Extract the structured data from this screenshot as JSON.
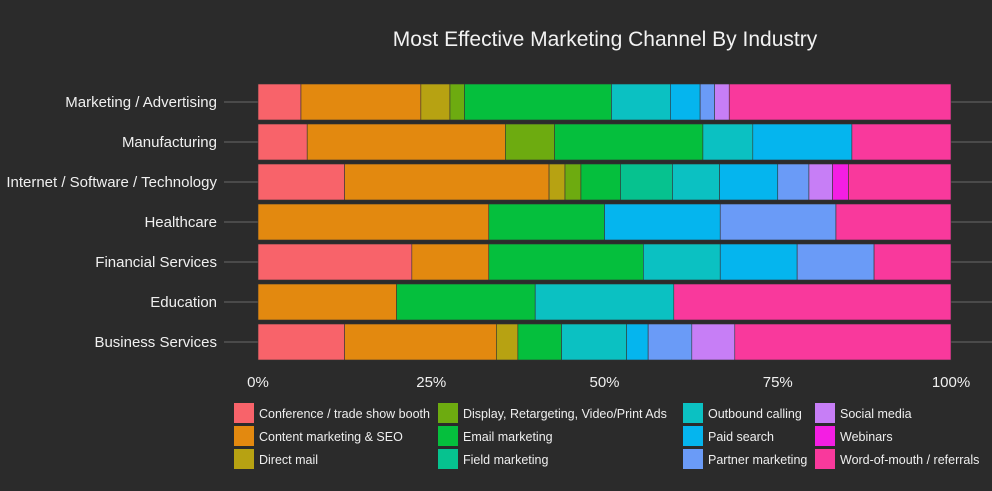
{
  "chart_data": {
    "type": "bar",
    "orientation": "horizontal",
    "stacked": "percent",
    "title": "Most Effective Marketing Channel By Industry",
    "xlabel": "",
    "ylabel": "",
    "xlim": [
      0,
      1
    ],
    "x_ticks": [
      "0%",
      "25%",
      "50%",
      "75%",
      "100%"
    ],
    "grid": true,
    "legend_position": "bottom",
    "categories": [
      "Marketing / Advertising",
      "Manufacturing",
      "Internet / Software / Technology",
      "Healthcare",
      "Financial Services",
      "Education",
      "Business Services"
    ],
    "series": [
      {
        "name": "Conference / trade show booth",
        "color": "#f8636a",
        "values": [
          0.062,
          0.071,
          0.125,
          0.0,
          0.222,
          0.0,
          0.125
        ]
      },
      {
        "name": "Content marketing & SEO",
        "color": "#e3890f",
        "values": [
          0.173,
          0.286,
          0.295,
          0.333,
          0.111,
          0.2,
          0.219
        ]
      },
      {
        "name": "Direct mail",
        "color": "#b7a212",
        "values": [
          0.042,
          0.0,
          0.023,
          0.0,
          0.0,
          0.0,
          0.031
        ]
      },
      {
        "name": "Display, Retargeting, Video/Print Ads",
        "color": "#6dab10",
        "values": [
          0.021,
          0.071,
          0.023,
          0.0,
          0.0,
          0.0,
          0.0
        ]
      },
      {
        "name": "Email marketing",
        "color": "#05bf3d",
        "values": [
          0.212,
          0.214,
          0.057,
          0.167,
          0.223,
          0.2,
          0.063
        ]
      },
      {
        "name": "Field marketing",
        "color": "#06c28f",
        "values": [
          0.0,
          0.0,
          0.075,
          0.0,
          0.0,
          0.0,
          0.0
        ]
      },
      {
        "name": "Outbound calling",
        "color": "#0bc1c2",
        "values": [
          0.085,
          0.072,
          0.068,
          0.0,
          0.111,
          0.2,
          0.094
        ]
      },
      {
        "name": "Paid search",
        "color": "#05b5ee",
        "values": [
          0.043,
          0.143,
          0.084,
          0.167,
          0.111,
          0.0,
          0.031
        ]
      },
      {
        "name": "Partner marketing",
        "color": "#6a9bf7",
        "values": [
          0.021,
          0.0,
          0.045,
          0.167,
          0.111,
          0.0,
          0.063
        ]
      },
      {
        "name": "Social media",
        "color": "#c77ef6",
        "values": [
          0.021,
          0.0,
          0.034,
          0.0,
          0.0,
          0.0,
          0.062
        ]
      },
      {
        "name": "Webinars",
        "color": "#f41ee3",
        "values": [
          0.0,
          0.0,
          0.023,
          0.0,
          0.0,
          0.0,
          0.0
        ]
      },
      {
        "name": "Word-of-mouth / referrals",
        "color": "#f9399c",
        "values": [
          0.32,
          0.143,
          0.148,
          0.166,
          0.111,
          0.4,
          0.312
        ]
      }
    ]
  },
  "legend_columns": [
    [
      "Conference / trade show booth",
      "Content marketing & SEO",
      "Direct mail"
    ],
    [
      "Display, Retargeting, Video/Print Ads",
      "Email marketing",
      "Field marketing"
    ],
    [
      "Outbound calling",
      "Paid search",
      "Partner marketing"
    ],
    [
      "Social media",
      "Webinars",
      "Word-of-mouth / referrals"
    ]
  ],
  "colors": {
    "background": "#2b2b2b",
    "grid": "#6a6a6a",
    "text": "#f0f0f0"
  }
}
